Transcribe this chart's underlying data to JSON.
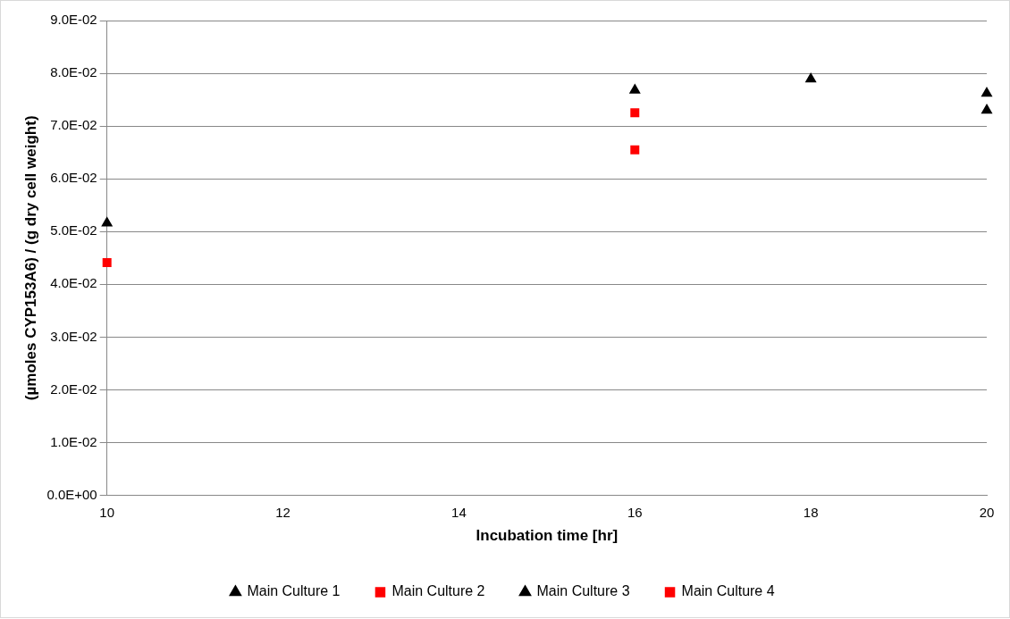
{
  "chart_data": {
    "type": "scatter",
    "xlabel": "Incubation time [hr]",
    "ylabel": "(µmoles CYP153A6) / (g dry cell weight)",
    "xlim": [
      10,
      20
    ],
    "xticks": [
      10,
      12,
      14,
      16,
      18,
      20
    ],
    "ylim": [
      0,
      0.09
    ],
    "yticks": [
      {
        "value": 0,
        "label": "0.0E+00"
      },
      {
        "value": 0.01,
        "label": "1.0E-02"
      },
      {
        "value": 0.02,
        "label": "2.0E-02"
      },
      {
        "value": 0.03,
        "label": "3.0E-02"
      },
      {
        "value": 0.04,
        "label": "4.0E-02"
      },
      {
        "value": 0.05,
        "label": "5.0E-02"
      },
      {
        "value": 0.06,
        "label": "6.0E-02"
      },
      {
        "value": 0.07,
        "label": "7.0E-02"
      },
      {
        "value": 0.08,
        "label": "8.0E-02"
      },
      {
        "value": 0.09,
        "label": "9.0E-02"
      }
    ],
    "grid": "y",
    "legend": "bottom",
    "series": [
      {
        "name": "Main Culture 1",
        "color": "#000000",
        "marker": "triangle",
        "x": [
          10,
          16,
          18,
          20
        ],
        "values": [
          0.0516,
          0.0768,
          0.0789,
          0.0762
        ]
      },
      {
        "name": "Main Culture 2",
        "color": "#ff0000",
        "marker": "square",
        "x": [
          10,
          16
        ],
        "values": [
          0.0441,
          0.0725
        ]
      },
      {
        "name": "Main Culture 3",
        "color": "#000000",
        "marker": "triangle",
        "x": [
          20
        ],
        "values": [
          0.073
        ]
      },
      {
        "name": "Main Culture 4",
        "color": "#ff0000",
        "marker": "square",
        "x": [
          16
        ],
        "values": [
          0.0655
        ]
      }
    ]
  }
}
